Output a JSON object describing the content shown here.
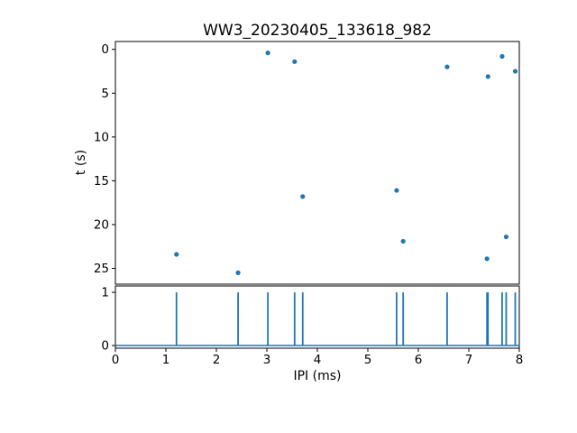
{
  "colors": {
    "marker": "#1f77b4",
    "spike": "#1f77b4",
    "axis": "#000000",
    "background": "#ffffff"
  },
  "chart_data": [
    {
      "type": "scatter",
      "title": "WW3_20230405_133618_982",
      "xlabel": "",
      "ylabel": "t (s)",
      "xlim": [
        0,
        8
      ],
      "ylim": [
        -0.9,
        26.8
      ],
      "y_axis_inverted": true,
      "grid": false,
      "legend": "none",
      "y_ticks": [
        0,
        5,
        10,
        15,
        20,
        25
      ],
      "x": [
        3.02,
        3.55,
        6.57,
        7.66,
        7.38,
        7.92,
        3.71,
        5.57,
        5.7,
        1.21,
        7.36,
        7.74,
        2.43
      ],
      "y": [
        0.4,
        1.4,
        2.0,
        0.8,
        3.1,
        2.5,
        16.8,
        16.1,
        21.9,
        23.4,
        23.9,
        21.4,
        25.5
      ]
    },
    {
      "type": "bar",
      "title": "",
      "xlabel": "IPI (ms)",
      "ylabel": "",
      "xlim": [
        0,
        8
      ],
      "ylim": [
        -0.05,
        1.12
      ],
      "grid": false,
      "legend": "none",
      "x_ticks": [
        0,
        1,
        2,
        3,
        4,
        5,
        6,
        7,
        8
      ],
      "y_ticks": [
        0,
        1
      ],
      "spike_x": [
        1.21,
        2.43,
        3.02,
        3.55,
        3.71,
        5.57,
        5.7,
        6.57,
        7.36,
        7.38,
        7.66,
        7.74,
        7.92
      ],
      "spike_height": 1,
      "baseline_y": 0
    }
  ]
}
